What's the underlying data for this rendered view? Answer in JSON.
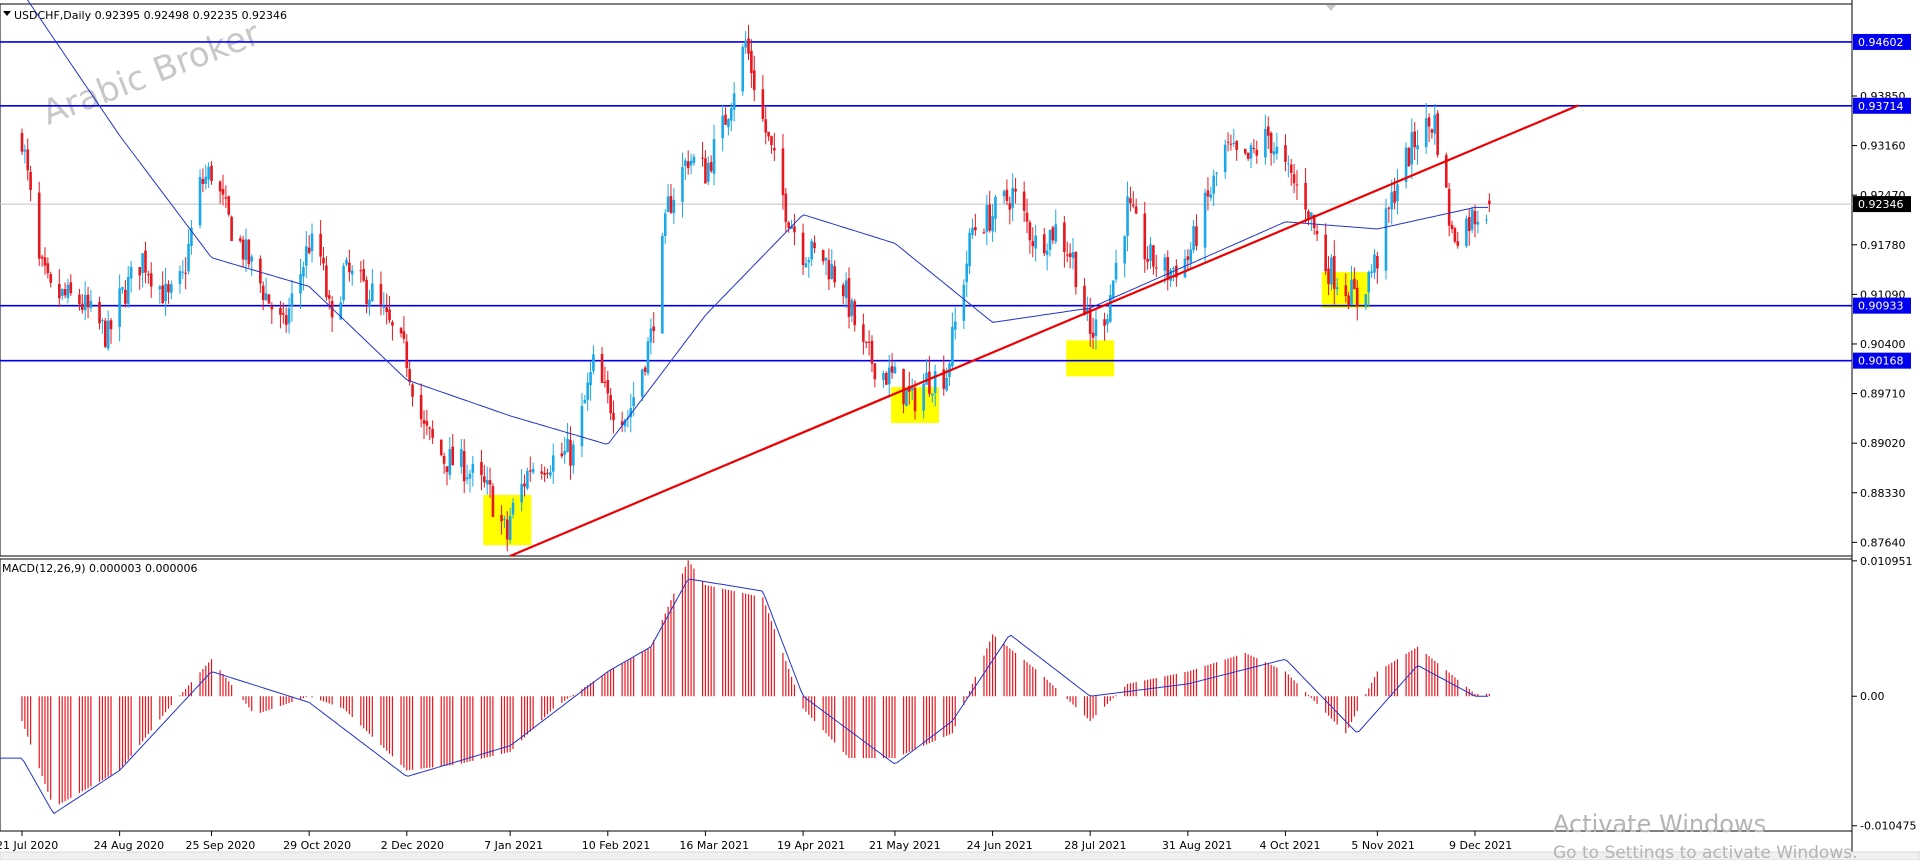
{
  "header": {
    "symbol_menu_icon": "triangle-down-icon",
    "title": "USDCHF,Daily  0.92395 0.92498 0.92235 0.92346"
  },
  "watermark": "Arabic Broker",
  "windows_notice": {
    "line1": "Activate Windows",
    "line2": "Go to Settings to activate Windows."
  },
  "colors": {
    "bull": "#1aa8e8",
    "bear": "#e8161e",
    "ma": "#2233cc",
    "level_line": "#0000ee",
    "trendline": "#ee0000",
    "highlight": "#ffff00",
    "macd_hist": "#e8161e",
    "macd_signal": "#2233cc",
    "current_price_tag": "#000000"
  },
  "chart_data": [
    {
      "type": "candlestick",
      "title": "USDCHF,Daily",
      "ohlc_last": {
        "open": 0.92395,
        "high": 0.92498,
        "low": 0.92235,
        "close": 0.92346
      },
      "ylim": [
        0.8745,
        0.9513
      ],
      "y_ticks": [
        "0.93850",
        "0.93160",
        "0.92470",
        "0.91780",
        "0.91090",
        "0.90400",
        "0.89710",
        "0.89020",
        "0.88330",
        "0.87640"
      ],
      "x_ticks": [
        "21 Jul 2020",
        "24 Aug 2020",
        "25 Sep 2020",
        "29 Oct 2020",
        "2 Dec 2020",
        "7 Jan 2021",
        "10 Feb 2021",
        "16 Mar 2021",
        "19 Apr 2021",
        "21 May 2021",
        "24 Jun 2021",
        "28 Jul 2021",
        "31 Aug 2021",
        "4 Oct 2021",
        "5 Nov 2021",
        "9 Dec 2021"
      ],
      "close_path": [
        [
          "21 Jul 2020",
          0.933
        ],
        [
          "27 Jul 2020",
          0.915
        ],
        [
          "31 Jul 2020",
          0.911
        ],
        [
          "10 Aug 2020",
          0.91
        ],
        [
          "20 Aug 2020",
          0.905
        ],
        [
          "24 Aug 2020",
          0.91
        ],
        [
          "1 Sep 2020",
          0.916
        ],
        [
          "10 Sep 2020",
          0.91
        ],
        [
          "15 Sep 2020",
          0.913
        ],
        [
          "21 Sep 2020",
          0.926
        ],
        [
          "25 Sep 2020",
          0.928
        ],
        [
          "1 Oct 2020",
          0.921
        ],
        [
          "10 Oct 2020",
          0.914
        ],
        [
          "20 Oct 2020",
          0.906
        ],
        [
          "29 Oct 2020",
          0.918
        ],
        [
          "2 Nov 2020",
          0.916
        ],
        [
          "6 Nov 2020",
          0.906
        ],
        [
          "10 Nov 2020",
          0.914
        ],
        [
          "20 Nov 2020",
          0.911
        ],
        [
          "25 Nov 2020",
          0.907
        ],
        [
          "2 Dec 2020",
          0.902
        ],
        [
          "8 Dec 2020",
          0.892
        ],
        [
          "15 Dec 2020",
          0.888
        ],
        [
          "22 Dec 2020",
          0.887
        ],
        [
          "31 Dec 2020",
          0.883
        ],
        [
          "6 Jan 2021",
          0.877
        ],
        [
          "7 Jan 2021",
          0.88
        ],
        [
          "14 Jan 2021",
          0.887
        ],
        [
          "22 Jan 2021",
          0.888
        ],
        [
          "29 Jan 2021",
          0.889
        ],
        [
          "5 Feb 2021",
          0.901
        ],
        [
          "10 Feb 2021",
          0.896
        ],
        [
          "17 Feb 2021",
          0.894
        ],
        [
          "25 Feb 2021",
          0.905
        ],
        [
          "3 Mar 2021",
          0.923
        ],
        [
          "10 Mar 2021",
          0.93
        ],
        [
          "16 Mar 2021",
          0.928
        ],
        [
          "22 Mar 2021",
          0.934
        ],
        [
          "30 Mar 2021",
          0.946
        ],
        [
          "5 Apr 2021",
          0.935
        ],
        [
          "13 Apr 2021",
          0.923
        ],
        [
          "19 Apr 2021",
          0.917
        ],
        [
          "26 Apr 2021",
          0.916
        ],
        [
          "3 May 2021",
          0.912
        ],
        [
          "10 May 2021",
          0.903
        ],
        [
          "17 May 2021",
          0.9
        ],
        [
          "21 May 2021",
          0.899
        ],
        [
          "27 May 2021",
          0.896
        ],
        [
          "1 Jun 2021",
          0.899
        ],
        [
          "8 Jun 2021",
          0.9
        ],
        [
          "17 Jun 2021",
          0.92
        ],
        [
          "24 Jun 2021",
          0.922
        ],
        [
          "1 Jul 2021",
          0.925
        ],
        [
          "9 Jul 2021",
          0.918
        ],
        [
          "16 Jul 2021",
          0.92
        ],
        [
          "22 Jul 2021",
          0.916
        ],
        [
          "28 Jul 2021",
          0.905
        ],
        [
          "3 Aug 2021",
          0.909
        ],
        [
          "10 Aug 2021",
          0.923
        ],
        [
          "17 Aug 2021",
          0.916
        ],
        [
          "24 Aug 2021",
          0.914
        ],
        [
          "31 Aug 2021",
          0.916
        ],
        [
          "7 Sep 2021",
          0.924
        ],
        [
          "13 Sep 2021",
          0.931
        ],
        [
          "20 Sep 2021",
          0.929
        ],
        [
          "28 Sep 2021",
          0.933
        ],
        [
          "4 Oct 2021",
          0.928
        ],
        [
          "11 Oct 2021",
          0.924
        ],
        [
          "18 Oct 2021",
          0.915
        ],
        [
          "25 Oct 2021",
          0.912
        ],
        [
          "29 Oct 2021",
          0.91
        ],
        [
          "5 Nov 2021",
          0.916
        ],
        [
          "12 Nov 2021",
          0.927
        ],
        [
          "19 Nov 2021",
          0.933
        ],
        [
          "25 Nov 2021",
          0.935
        ],
        [
          "1 Dec 2021",
          0.919
        ],
        [
          "9 Dec 2021",
          0.922
        ],
        [
          "14 Dec 2021",
          0.9235
        ]
      ],
      "moving_average": [
        [
          "21 Jul 2020",
          0.953
        ],
        [
          "24 Aug 2020",
          0.933
        ],
        [
          "25 Sep 2020",
          0.916
        ],
        [
          "29 Oct 2020",
          0.912
        ],
        [
          "2 Dec 2020",
          0.899
        ],
        [
          "7 Jan 2021",
          0.894
        ],
        [
          "10 Feb 2021",
          0.89
        ],
        [
          "16 Mar 2021",
          0.908
        ],
        [
          "19 Apr 2021",
          0.922
        ],
        [
          "21 May 2021",
          0.918
        ],
        [
          "24 Jun 2021",
          0.907
        ],
        [
          "28 Jul 2021",
          0.909
        ],
        [
          "31 Aug 2021",
          0.915
        ],
        [
          "4 Oct 2021",
          0.921
        ],
        [
          "5 Nov 2021",
          0.92
        ],
        [
          "9 Dec 2021",
          0.923
        ]
      ],
      "horizontal_levels": [
        "0.94602",
        "0.93714",
        "0.90933",
        "0.90168"
      ],
      "current_price": "0.92346",
      "trendline": [
        [
          "7 Jan 2021",
          0.8745
        ],
        [
          "14 Jan 2022",
          0.9372
        ]
      ],
      "highlight_zones": [
        {
          "date": "6 Jan 2021",
          "low": 0.876,
          "high": 0.883
        },
        {
          "date": "28 May 2021",
          "low": 0.893,
          "high": 0.898
        },
        {
          "date": "28 Jul 2021",
          "low": 0.8995,
          "high": 0.9045
        },
        {
          "date": "25 Oct 2021",
          "low": 0.909,
          "high": 0.914
        }
      ]
    },
    {
      "type": "bar",
      "title": "MACD(12,26,9) 0.000003 0.000006",
      "ylim": [
        -0.0109,
        0.0111
      ],
      "y_ticks": [
        "0.010951",
        "0.00",
        "-0.010475"
      ],
      "histogram_path": [
        [
          "21 Jul 2020",
          -0.002
        ],
        [
          "1 Aug 2020",
          -0.009
        ],
        [
          "24 Aug 2020",
          -0.006
        ],
        [
          "10 Sep 2020",
          -0.001
        ],
        [
          "25 Sep 2020",
          0.003
        ],
        [
          "10 Oct 2020",
          -0.0015
        ],
        [
          "29 Oct 2020",
          0.0
        ],
        [
          "10 Nov 2020",
          -0.001
        ],
        [
          "2 Dec 2020",
          -0.006
        ],
        [
          "20 Dec 2020",
          -0.0055
        ],
        [
          "7 Jan 2021",
          -0.0045
        ],
        [
          "22 Jan 2021",
          -0.001
        ],
        [
          "10 Feb 2021",
          0.002
        ],
        [
          "25 Feb 2021",
          0.004
        ],
        [
          "10 Mar 2021",
          0.011
        ],
        [
          "16 Mar 2021",
          0.009
        ],
        [
          "5 Apr 2021",
          0.008
        ],
        [
          "19 Apr 2021",
          -0.001
        ],
        [
          "5 May 2021",
          -0.005
        ],
        [
          "21 May 2021",
          -0.005
        ],
        [
          "10 Jun 2021",
          -0.003
        ],
        [
          "24 Jun 2021",
          0.005
        ],
        [
          "10 Jul 2021",
          0.002
        ],
        [
          "28 Jul 2021",
          -0.002
        ],
        [
          "10 Aug 2021",
          0.001
        ],
        [
          "31 Aug 2021",
          0.002
        ],
        [
          "20 Sep 2021",
          0.0035
        ],
        [
          "4 Oct 2021",
          0.002
        ],
        [
          "25 Oct 2021",
          -0.003
        ],
        [
          "5 Nov 2021",
          0.002
        ],
        [
          "19 Nov 2021",
          0.004
        ],
        [
          "9 Dec 2021",
          0.0002
        ]
      ],
      "signal_path": [
        [
          "21 Jul 2020",
          -0.005
        ],
        [
          "1 Aug 2020",
          -0.0095
        ],
        [
          "24 Aug 2020",
          -0.006
        ],
        [
          "25 Sep 2020",
          0.002
        ],
        [
          "29 Oct 2020",
          -0.0005
        ],
        [
          "2 Dec 2020",
          -0.0065
        ],
        [
          "7 Jan 2021",
          -0.004
        ],
        [
          "10 Feb 2021",
          0.002
        ],
        [
          "25 Feb 2021",
          0.004
        ],
        [
          "10 Mar 2021",
          0.0095
        ],
        [
          "5 Apr 2021",
          0.0085
        ],
        [
          "19 Apr 2021",
          0.0
        ],
        [
          "21 May 2021",
          -0.0055
        ],
        [
          "10 Jun 2021",
          -0.002
        ],
        [
          "30 Jun 2021",
          0.005
        ],
        [
          "28 Jul 2021",
          0.0
        ],
        [
          "31 Aug 2021",
          0.001
        ],
        [
          "4 Oct 2021",
          0.003
        ],
        [
          "29 Oct 2021",
          -0.003
        ],
        [
          "19 Nov 2021",
          0.0025
        ],
        [
          "9 Dec 2021",
          0.0
        ]
      ]
    }
  ]
}
